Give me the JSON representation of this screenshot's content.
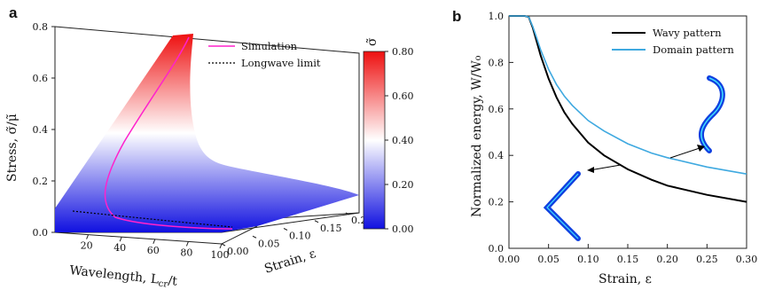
{
  "panel_a": {
    "letter": "a",
    "z_label": "Stress, σ̃/μ̃",
    "x_label": "Wavelength, L",
    "x_label_sub": "cr",
    "x_label_tail": "/t",
    "y_label": "Strain, ε",
    "legend": [
      "Simulation",
      "Longwave limit"
    ],
    "colorbar_title": "σ̃",
    "colorbar_ticks": [
      "0.80",
      "0.60",
      "0.40",
      "0.20",
      "0.00"
    ],
    "colors": {
      "low": "#1010e0",
      "mid": "#ffffff",
      "high": "#ee1010",
      "simulation": "#ff22cc",
      "longwave": "#000000"
    }
  },
  "chart_data": [
    {
      "type": "surface3d",
      "panel": "a",
      "xlabel": "Wavelength, L_cr/t",
      "ylabel": "Strain, ε",
      "zlabel": "Stress, σ̃/μ̃",
      "x_ticks": [
        20,
        40,
        60,
        80,
        100
      ],
      "y_ticks": [
        0.0,
        0.05,
        0.1,
        0.15,
        0.2
      ],
      "z_ticks": [
        0.0,
        0.2,
        0.4,
        0.6,
        0.8
      ],
      "xlim": [
        0,
        100
      ],
      "ylim": [
        0,
        0.2
      ],
      "zlim": [
        0,
        0.8
      ],
      "colorbar_range": [
        0,
        0.8
      ],
      "series": [
        {
          "name": "Simulation",
          "style": "solid",
          "color": "#ff22cc"
        },
        {
          "name": "Longwave limit",
          "style": "dotted",
          "color": "#000000"
        }
      ]
    },
    {
      "type": "line",
      "panel": "b",
      "title": "",
      "xlabel": "Strain, ε",
      "ylabel": "Normalized energy, W/W₀",
      "xlim": [
        0,
        0.3
      ],
      "ylim": [
        0,
        1.0
      ],
      "x_ticks": [
        "0.00",
        "0.05",
        "0.10",
        "0.15",
        "0.20",
        "0.25",
        "0.30"
      ],
      "y_ticks": [
        "0.0",
        "0.2",
        "0.4",
        "0.6",
        "0.8",
        "1.0"
      ],
      "legend_position": "top-right",
      "series": [
        {
          "name": "Wavy pattern",
          "color": "#000000",
          "x": [
            0.0,
            0.02,
            0.025,
            0.03,
            0.035,
            0.04,
            0.05,
            0.06,
            0.07,
            0.08,
            0.1,
            0.12,
            0.15,
            0.18,
            0.2,
            0.25,
            0.3
          ],
          "y": [
            1.0,
            1.0,
            0.995,
            0.95,
            0.89,
            0.83,
            0.73,
            0.65,
            0.585,
            0.535,
            0.455,
            0.4,
            0.34,
            0.295,
            0.27,
            0.23,
            0.2
          ]
        },
        {
          "name": "Domain pattern",
          "color": "#3fa9e0",
          "x": [
            0.0,
            0.02,
            0.025,
            0.03,
            0.035,
            0.04,
            0.05,
            0.06,
            0.07,
            0.08,
            0.1,
            0.12,
            0.15,
            0.18,
            0.2,
            0.25,
            0.3
          ],
          "y": [
            1.0,
            1.0,
            0.995,
            0.955,
            0.905,
            0.855,
            0.77,
            0.705,
            0.655,
            0.615,
            0.55,
            0.505,
            0.45,
            0.41,
            0.39,
            0.35,
            0.32
          ]
        }
      ]
    }
  ],
  "panel_b": {
    "letter": "b",
    "legend": [
      "Wavy pattern",
      "Domain pattern"
    ]
  }
}
